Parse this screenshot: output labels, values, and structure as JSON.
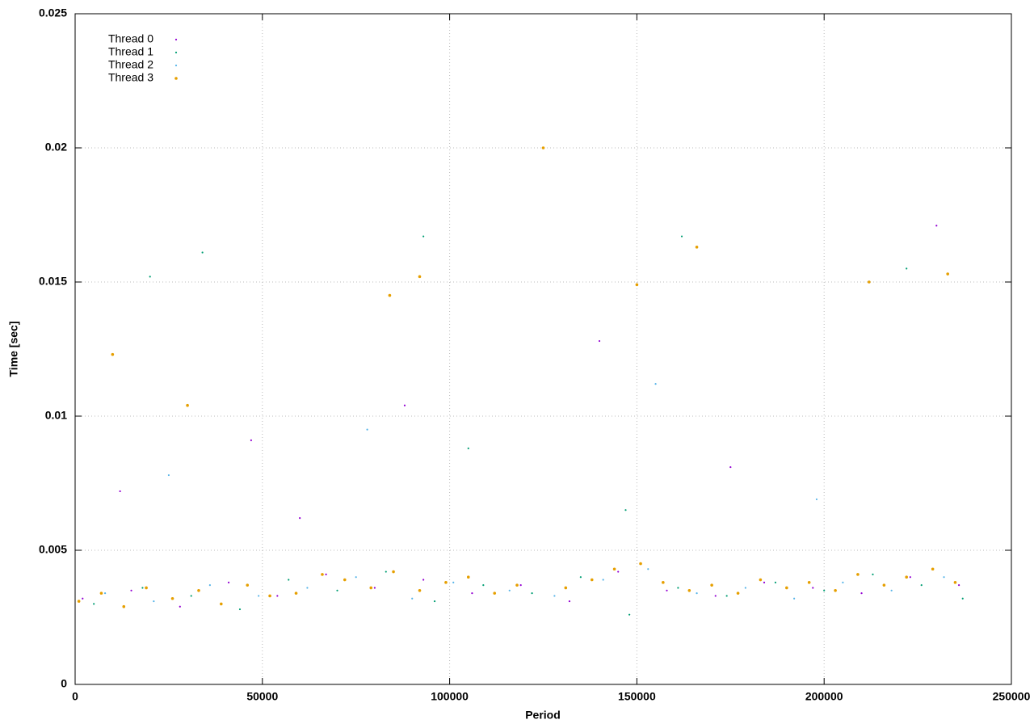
{
  "chart_data": {
    "type": "scatter",
    "xlabel": "Period",
    "ylabel": "Time [sec]",
    "xlim": [
      0,
      250000
    ],
    "xticks": [
      0,
      50000,
      100000,
      150000,
      200000,
      250000
    ],
    "ylim": [
      0,
      0.025
    ],
    "yticks": [
      0,
      0.005,
      0.01,
      0.015,
      0.02,
      0.025
    ],
    "grid": true,
    "legend": "top-left",
    "series": [
      {
        "name": "Thread 0",
        "color": "#9400d3",
        "x": [
          2000,
          15000,
          28000,
          41000,
          54000,
          67000,
          80000,
          93000,
          106000,
          119000,
          132000,
          145000,
          158000,
          171000,
          184000,
          197000,
          210000,
          223000,
          236000,
          12000,
          47000,
          88000,
          140000,
          230000,
          60000,
          175000
        ],
        "values": [
          0.0032,
          0.0035,
          0.0029,
          0.0038,
          0.0033,
          0.0041,
          0.0036,
          0.0039,
          0.0034,
          0.0037,
          0.0031,
          0.0042,
          0.0035,
          0.0033,
          0.0038,
          0.0036,
          0.0034,
          0.004,
          0.0037,
          0.0072,
          0.0091,
          0.0104,
          0.0128,
          0.0171,
          0.0062,
          0.0081
        ]
      },
      {
        "name": "Thread 1",
        "color": "#009e73",
        "x": [
          5000,
          18000,
          31000,
          44000,
          57000,
          70000,
          83000,
          96000,
          109000,
          122000,
          135000,
          148000,
          161000,
          174000,
          187000,
          200000,
          213000,
          226000,
          237000,
          34000,
          93000,
          162000,
          222000,
          20000,
          147000,
          105000
        ],
        "values": [
          0.003,
          0.0036,
          0.0033,
          0.0028,
          0.0039,
          0.0035,
          0.0042,
          0.0031,
          0.0037,
          0.0034,
          0.004,
          0.0026,
          0.0036,
          0.0033,
          0.0038,
          0.0035,
          0.0041,
          0.0037,
          0.0032,
          0.0161,
          0.0167,
          0.0167,
          0.0155,
          0.0152,
          0.0065,
          0.0088
        ]
      },
      {
        "name": "Thread 2",
        "color": "#56b4e9",
        "x": [
          8000,
          21000,
          36000,
          49000,
          62000,
          75000,
          90000,
          101000,
          116000,
          128000,
          141000,
          153000,
          166000,
          179000,
          192000,
          205000,
          218000,
          232000,
          25000,
          78000,
          155000,
          198000
        ],
        "values": [
          0.0034,
          0.0031,
          0.0037,
          0.0033,
          0.0036,
          0.004,
          0.0032,
          0.0038,
          0.0035,
          0.0033,
          0.0039,
          0.0043,
          0.0034,
          0.0036,
          0.0032,
          0.0038,
          0.0035,
          0.004,
          0.0078,
          0.0095,
          0.0112,
          0.0069
        ]
      },
      {
        "name": "Thread 3",
        "color": "#e69f00",
        "x": [
          1000,
          7000,
          13000,
          19000,
          26000,
          33000,
          39000,
          46000,
          52000,
          59000,
          66000,
          72000,
          79000,
          85000,
          92000,
          99000,
          105000,
          112000,
          118000,
          125000,
          131000,
          138000,
          144000,
          151000,
          157000,
          164000,
          170000,
          177000,
          183000,
          190000,
          196000,
          203000,
          209000,
          216000,
          222000,
          229000,
          235000,
          30000,
          10000,
          84000,
          92000,
          166000,
          212000,
          233000,
          150000
        ],
        "values": [
          0.0031,
          0.0034,
          0.0029,
          0.0036,
          0.0032,
          0.0035,
          0.003,
          0.0037,
          0.0033,
          0.0034,
          0.0041,
          0.0039,
          0.0036,
          0.0042,
          0.0035,
          0.0038,
          0.004,
          0.0034,
          0.0037,
          0.02,
          0.0036,
          0.0039,
          0.0043,
          0.0045,
          0.0038,
          0.0035,
          0.0037,
          0.0034,
          0.0039,
          0.0036,
          0.0038,
          0.0035,
          0.0041,
          0.0037,
          0.004,
          0.0043,
          0.0038,
          0.0104,
          0.0123,
          0.0145,
          0.0152,
          0.0163,
          0.015,
          0.0153,
          0.0149
        ]
      }
    ]
  }
}
